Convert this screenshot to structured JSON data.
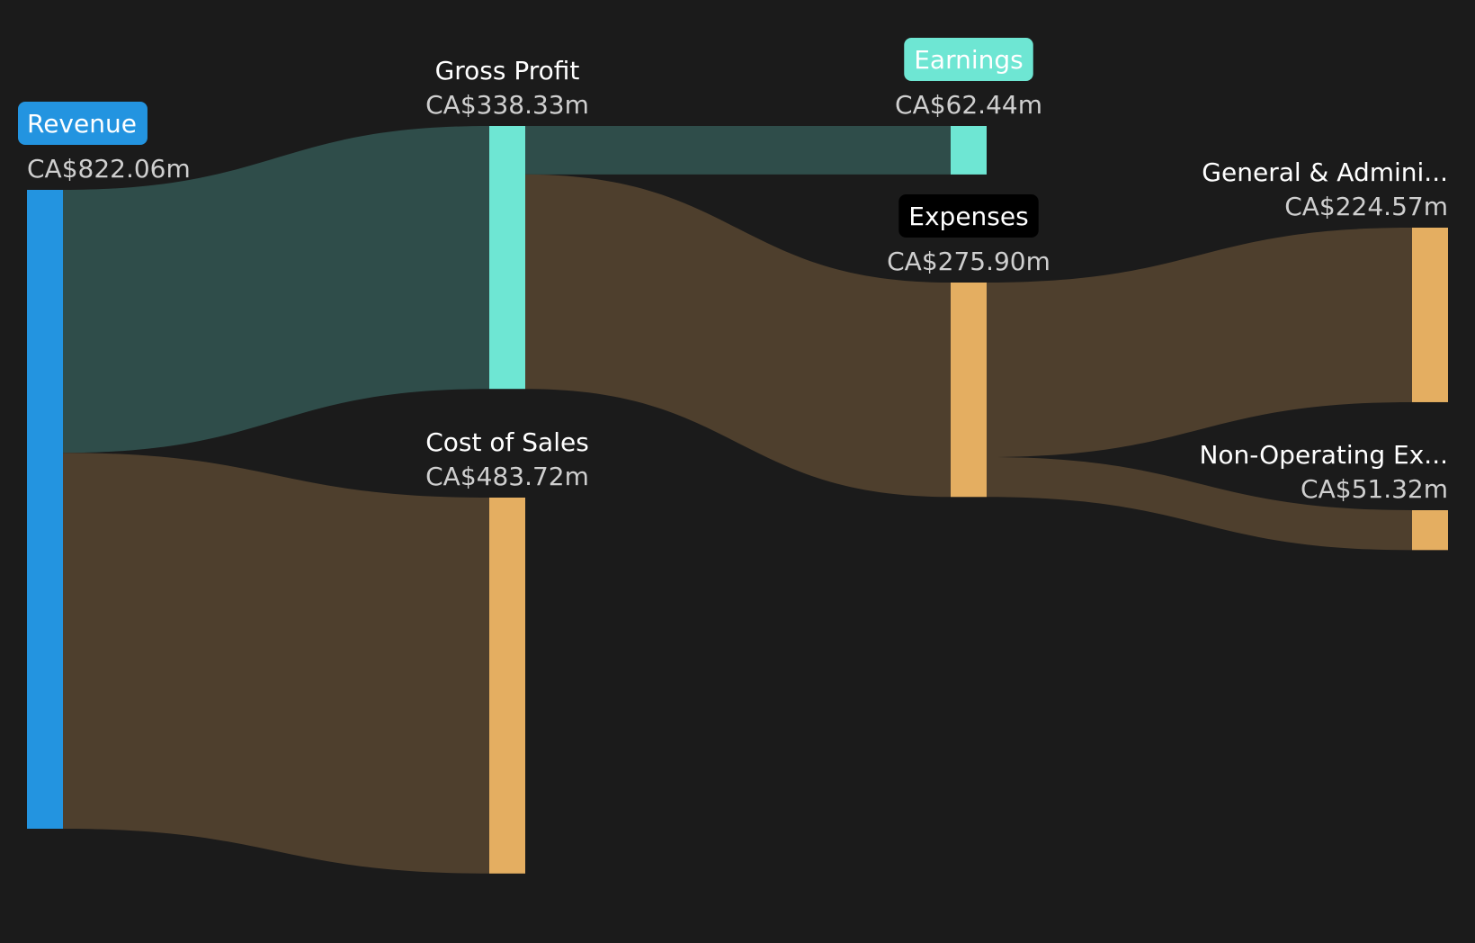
{
  "chart_data": {
    "type": "sankey",
    "currency": "CA$",
    "unit": "m",
    "nodes": [
      {
        "id": "revenue",
        "label": "Revenue",
        "value_text": "CA$822.06m",
        "value": 822.06,
        "color": "#2394e0",
        "badge": true,
        "badge_color": "#2394e0",
        "badge_text_color": "#ffffff"
      },
      {
        "id": "gross_profit",
        "label": "Gross Profit",
        "value_text": "CA$338.33m",
        "value": 338.33,
        "color": "#6ee6d3",
        "badge": false
      },
      {
        "id": "cost_of_sales",
        "label": "Cost of Sales",
        "value_text": "CA$483.72m",
        "value": 483.72,
        "color": "#e4ae61",
        "badge": false
      },
      {
        "id": "earnings",
        "label": "Earnings",
        "value_text": "CA$62.44m",
        "value": 62.44,
        "color": "#6ee6d3",
        "badge": true,
        "badge_color": "#6ee6d3",
        "badge_text_color": "#1b1b1b"
      },
      {
        "id": "expenses",
        "label": "Expenses",
        "value_text": "CA$275.90m",
        "value": 275.9,
        "color": "#e4ae61",
        "badge": true,
        "badge_color": "#000000",
        "badge_text_color": "#ffffff"
      },
      {
        "id": "general_admin",
        "label": "General & Admini...",
        "value_text": "CA$224.57m",
        "value": 224.57,
        "color": "#e4ae61",
        "badge": false
      },
      {
        "id": "non_operating",
        "label": "Non-Operating Ex...",
        "value_text": "CA$51.32m",
        "value": 51.32,
        "color": "#e4ae61",
        "badge": false
      }
    ],
    "links": [
      {
        "source": "revenue",
        "target": "gross_profit",
        "value": 338.33,
        "kind": "profit"
      },
      {
        "source": "revenue",
        "target": "cost_of_sales",
        "value": 483.72,
        "kind": "expense"
      },
      {
        "source": "gross_profit",
        "target": "earnings",
        "value": 62.44,
        "kind": "profit"
      },
      {
        "source": "gross_profit",
        "target": "expenses",
        "value": 275.9,
        "kind": "expense"
      },
      {
        "source": "expenses",
        "target": "general_admin",
        "value": 224.57,
        "kind": "expense"
      },
      {
        "source": "expenses",
        "target": "non_operating",
        "value": 51.32,
        "kind": "expense"
      }
    ],
    "colors": {
      "background": "#1b1b1b",
      "profit_link": "#2f4d4a",
      "expense_link": "#4e3f2d"
    }
  }
}
